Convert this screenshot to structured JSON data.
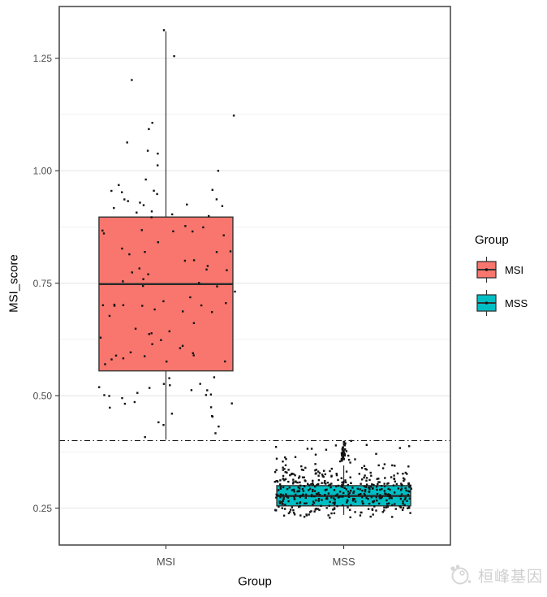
{
  "chart_data": {
    "type": "boxplot",
    "title": "",
    "xlabel": "Group",
    "ylabel": "MSI_score",
    "categories": [
      "MSI",
      "MSS"
    ],
    "yticks": [
      0.25,
      0.5,
      0.75,
      1.0,
      1.25
    ],
    "ytick_labels": [
      "0.25",
      "0.50",
      "0.75",
      "1.00",
      "1.25"
    ],
    "yticks_minor": [
      0.375,
      0.625,
      0.875,
      1.125
    ],
    "ylim": [
      0.168,
      1.365
    ],
    "grid": "major+minor",
    "threshold": {
      "value": 0.4,
      "style": "dotdash",
      "color": "#111111"
    },
    "point_color": "#141414",
    "series": [
      {
        "name": "MSI",
        "color": "#F8766D",
        "stats": {
          "min": 0.402,
          "q1": 0.555,
          "median": 0.748,
          "q3": 0.897,
          "max": 1.31
        },
        "jitter": {
          "n": 120,
          "mean": 0.73,
          "sd": 0.25,
          "min": 0.402,
          "max": 1.315
        }
      },
      {
        "name": "MSS",
        "color": "#00BFC4",
        "stats": {
          "min": 0.235,
          "q1": 0.255,
          "median": 0.277,
          "q3": 0.3,
          "max": 0.345
        },
        "jitter": {
          "n": 430,
          "mean": 0.285,
          "sd": 0.031,
          "min": 0.228,
          "max": 0.4,
          "extra_upper": {
            "n": 16,
            "range": [
              0.335,
              0.402
            ]
          }
        },
        "outlier_cluster": {
          "n": 24,
          "range": [
            0.355,
            0.402
          ]
        }
      }
    ],
    "legend": {
      "title": "Group",
      "position": "right",
      "items": [
        {
          "label": "MSI",
          "color": "#F8766D"
        },
        {
          "label": "MSS",
          "color": "#00BFC4"
        }
      ]
    },
    "watermark": "桓峰基因"
  }
}
